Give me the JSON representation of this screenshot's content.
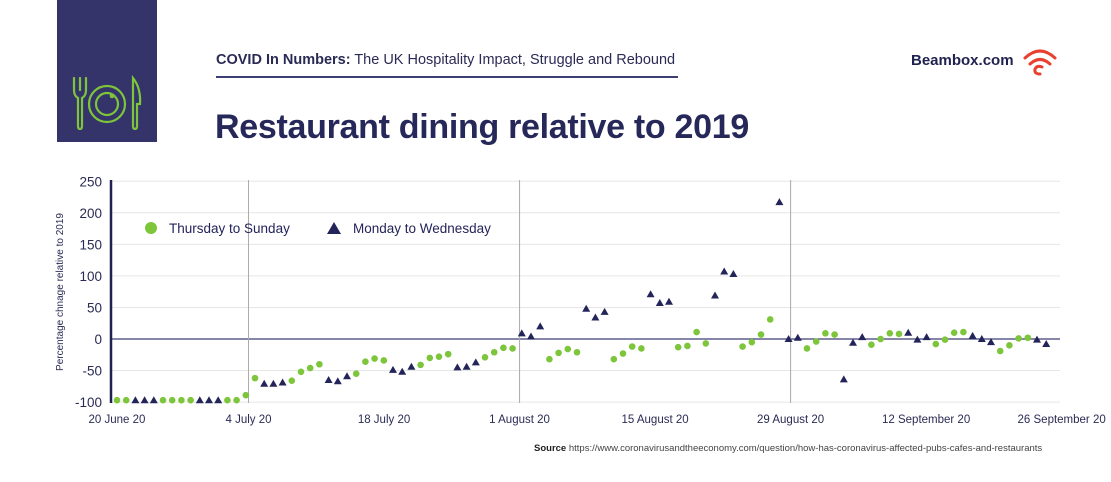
{
  "header": {
    "kicker_bold": "COVID In Numbers:",
    "kicker_rest": " The UK Hospitality Impact, Struggle and Rebound",
    "brand": "Beambox.com",
    "logo_icon": "plate-fork-knife-icon",
    "brand_icon": "wifi-signal-icon"
  },
  "source": {
    "label": "Source",
    "url": "https://www.coronavirusandtheeconomy.com/question/how-has-coronavirus-affected-pubs-cafes-and-restaurants"
  },
  "colors": {
    "navy": "#34346a",
    "green": "#7dc53a",
    "triangle": "#23245a",
    "brand_red": "#e8402f"
  },
  "chart_data": {
    "type": "scatter",
    "title": "Restaurant dining relative to 2019",
    "ylabel": "Percentage chnage relative to 2019",
    "xlabel": "",
    "ylim": [
      -100,
      250
    ],
    "yticks": [
      250,
      200,
      150,
      100,
      50,
      0,
      -50,
      -100
    ],
    "xtick_labels": [
      "20 June 20",
      "4 July 20",
      "18 July 20",
      "1 August 20",
      "15 August 20",
      "29 August 20",
      "12 September 20",
      "26 September 20"
    ],
    "x_start": "20 June 20",
    "legend_position": "top-left",
    "grid": "horizontal",
    "series": [
      {
        "name": "Thursday to Sunday",
        "marker": "circle",
        "points": [
          [
            "2020-06-20",
            -97
          ],
          [
            "2020-06-21",
            -97
          ],
          [
            "2020-06-25",
            -97
          ],
          [
            "2020-06-26",
            -97
          ],
          [
            "2020-06-27",
            -97
          ],
          [
            "2020-06-28",
            -97
          ],
          [
            "2020-07-02",
            -97
          ],
          [
            "2020-07-03",
            -97
          ],
          [
            "2020-07-04",
            -89
          ],
          [
            "2020-07-05",
            -62
          ],
          [
            "2020-07-09",
            -66
          ],
          [
            "2020-07-10",
            -52
          ],
          [
            "2020-07-11",
            -46
          ],
          [
            "2020-07-12",
            -40
          ],
          [
            "2020-07-16",
            -55
          ],
          [
            "2020-07-17",
            -36
          ],
          [
            "2020-07-18",
            -31
          ],
          [
            "2020-07-19",
            -34
          ],
          [
            "2020-07-23",
            -41
          ],
          [
            "2020-07-24",
            -30
          ],
          [
            "2020-07-25",
            -28
          ],
          [
            "2020-07-26",
            -24
          ],
          [
            "2020-07-30",
            -29
          ],
          [
            "2020-07-31",
            -21
          ],
          [
            "2020-08-01",
            -14
          ],
          [
            "2020-08-02",
            -15
          ],
          [
            "2020-08-06",
            -32
          ],
          [
            "2020-08-07",
            -22
          ],
          [
            "2020-08-08",
            -16
          ],
          [
            "2020-08-09",
            -21
          ],
          [
            "2020-08-13",
            -32
          ],
          [
            "2020-08-14",
            -23
          ],
          [
            "2020-08-15",
            -12
          ],
          [
            "2020-08-16",
            -15
          ],
          [
            "2020-08-20",
            -13
          ],
          [
            "2020-08-21",
            -11
          ],
          [
            "2020-08-22",
            11
          ],
          [
            "2020-08-23",
            -7
          ],
          [
            "2020-08-27",
            -12
          ],
          [
            "2020-08-28",
            -5
          ],
          [
            "2020-08-29",
            7
          ],
          [
            "2020-08-30",
            31
          ],
          [
            "2020-09-03",
            -15
          ],
          [
            "2020-09-04",
            -4
          ],
          [
            "2020-09-05",
            9
          ],
          [
            "2020-09-06",
            7
          ],
          [
            "2020-09-10",
            -9
          ],
          [
            "2020-09-11",
            0
          ],
          [
            "2020-09-12",
            9
          ],
          [
            "2020-09-13",
            8
          ],
          [
            "2020-09-17",
            -8
          ],
          [
            "2020-09-18",
            -1
          ],
          [
            "2020-09-19",
            10
          ],
          [
            "2020-09-20",
            11
          ],
          [
            "2020-09-24",
            -19
          ],
          [
            "2020-09-25",
            -10
          ],
          [
            "2020-09-26",
            1
          ],
          [
            "2020-09-27",
            2
          ]
        ]
      },
      {
        "name": "Monday to Wednesday",
        "marker": "triangle",
        "points": [
          [
            "2020-06-22",
            -97
          ],
          [
            "2020-06-23",
            -97
          ],
          [
            "2020-06-24",
            -97
          ],
          [
            "2020-06-29",
            -97
          ],
          [
            "2020-06-30",
            -97
          ],
          [
            "2020-07-01",
            -97
          ],
          [
            "2020-07-06",
            -71
          ],
          [
            "2020-07-07",
            -71
          ],
          [
            "2020-07-08",
            -69
          ],
          [
            "2020-07-13",
            -65
          ],
          [
            "2020-07-14",
            -67
          ],
          [
            "2020-07-15",
            -59
          ],
          [
            "2020-07-20",
            -49
          ],
          [
            "2020-07-21",
            -52
          ],
          [
            "2020-07-22",
            -44
          ],
          [
            "2020-07-27",
            -45
          ],
          [
            "2020-07-28",
            -44
          ],
          [
            "2020-07-29",
            -37
          ],
          [
            "2020-08-03",
            9
          ],
          [
            "2020-08-04",
            4
          ],
          [
            "2020-08-05",
            20
          ],
          [
            "2020-08-10",
            48
          ],
          [
            "2020-08-11",
            34
          ],
          [
            "2020-08-12",
            43
          ],
          [
            "2020-08-17",
            71
          ],
          [
            "2020-08-18",
            57
          ],
          [
            "2020-08-19",
            59
          ],
          [
            "2020-08-24",
            69
          ],
          [
            "2020-08-25",
            107
          ],
          [
            "2020-08-26",
            103
          ],
          [
            "2020-08-31",
            217
          ],
          [
            "2020-09-01",
            0
          ],
          [
            "2020-09-02",
            2
          ],
          [
            "2020-09-07",
            -64
          ],
          [
            "2020-09-08",
            -6
          ],
          [
            "2020-09-09",
            3
          ],
          [
            "2020-09-14",
            10
          ],
          [
            "2020-09-15",
            -1
          ],
          [
            "2020-09-16",
            3
          ],
          [
            "2020-09-21",
            5
          ],
          [
            "2020-09-22",
            0
          ],
          [
            "2020-09-23",
            -5
          ],
          [
            "2020-09-28",
            -1
          ],
          [
            "2020-09-29",
            -8
          ]
        ]
      }
    ]
  }
}
